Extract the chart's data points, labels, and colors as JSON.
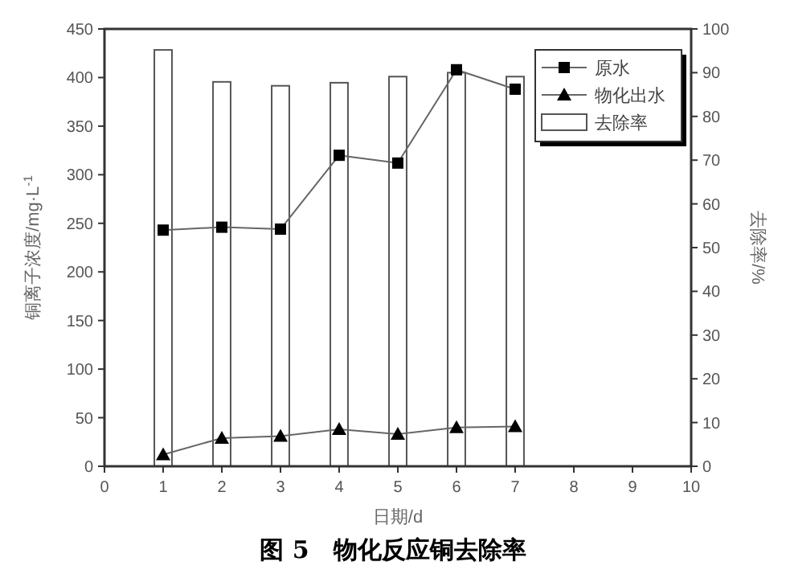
{
  "chart_data": {
    "type": "line",
    "title": "图 5　物化反应铜去除率",
    "xlabel": "日期/d",
    "ylabel": "铜离子浓度/mg·L$^{-1}$",
    "y2label": "去除率/%",
    "x": [
      1,
      2,
      3,
      4,
      5,
      6,
      7
    ],
    "series": [
      {
        "name": "原水",
        "marker": "square",
        "color": "#000000",
        "values": [
          243,
          246,
          244,
          320,
          312,
          408,
          388
        ]
      },
      {
        "name": "物化出水",
        "marker": "triangle",
        "color": "#000000",
        "values": [
          12,
          29,
          31,
          38,
          33,
          40,
          41
        ]
      },
      {
        "name": "去除率",
        "type": "bar",
        "axis": "y2",
        "color": "#ffffff",
        "values": [
          95.2,
          87.9,
          87.0,
          87.7,
          89.1,
          90,
          89.1
        ]
      }
    ],
    "xlim": [
      0,
      10
    ],
    "xticks": [
      0,
      1,
      2,
      3,
      4,
      5,
      6,
      7,
      8,
      9,
      10
    ],
    "ylim": [
      0,
      450
    ],
    "yticks": [
      0,
      50,
      100,
      150,
      200,
      250,
      300,
      350,
      400,
      450
    ],
    "y2lim": [
      0,
      100
    ],
    "y2ticks": [
      0,
      10,
      20,
      30,
      40,
      50,
      60,
      70,
      80,
      90,
      100
    ],
    "legend": "top right",
    "grid": false
  }
}
